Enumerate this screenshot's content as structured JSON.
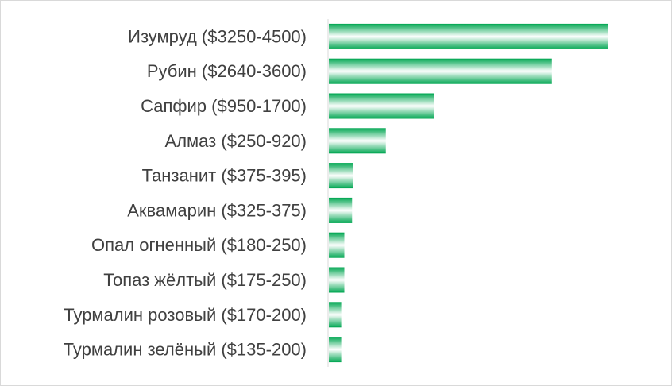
{
  "chart_data": {
    "type": "bar",
    "orientation": "horizontal",
    "categories": [
      "Изумруд ($3250-4500)",
      "Рубин ($2640-3600)",
      "Сапфир ($950-1700)",
      "Алмаз ($250-920)",
      "Танзанит ($375-395)",
      "Аквамарин ($325-375)",
      "Опал огненный ($180-250)",
      "Топаз жёлтый ($175-250)",
      "Турмалин розовый  ($170-200)",
      "Турмалин зелёный  ($135-200)"
    ],
    "values": [
      4500,
      3600,
      1700,
      920,
      395,
      375,
      250,
      250,
      200,
      200
    ],
    "title": "",
    "xlabel": "",
    "ylabel": "",
    "xlim": [
      0,
      5000
    ],
    "grid": false,
    "legend": "none",
    "colors": {
      "bar_edge": "#00a651",
      "bar_center": "#ffffff",
      "axis": "#d9d9d9",
      "label": "#404040"
    }
  }
}
